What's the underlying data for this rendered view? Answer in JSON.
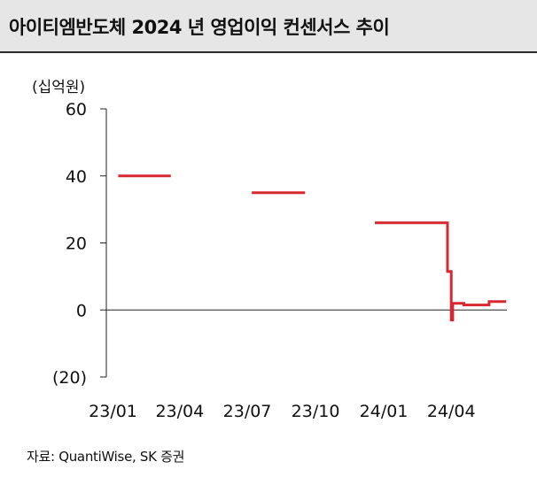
{
  "chart_data": {
    "type": "line",
    "title": "아이티엠반도체 2024 년 영업이익 컨센서스 추이",
    "ylabel": "(십억원)",
    "xlabel": "",
    "source": "자료: QuantiWise, SK 증권",
    "ylim": [
      -20,
      60
    ],
    "xlim": [
      "2022-12-23",
      "2024-06-15"
    ],
    "y_ticks": [
      60,
      40,
      20,
      0,
      -20
    ],
    "y_tick_labels": [
      "60",
      "40",
      "20",
      "0",
      "(20)"
    ],
    "x_ticks": [
      "2023-01-01",
      "2023-04-01",
      "2023-07-01",
      "2023-10-01",
      "2024-01-01",
      "2024-04-01"
    ],
    "x_tick_labels": [
      "23/01",
      "23/04",
      "23/07",
      "23/10",
      "24/01",
      "24/04"
    ],
    "grid": false,
    "legend": "none",
    "series_color": "#d7282f",
    "series": [
      {
        "segments": [
          [
            [
              "2023-01-08",
              40
            ],
            [
              "2023-03-20",
              40
            ]
          ],
          [
            [
              "2023-07-07",
              35
            ],
            [
              "2023-09-17",
              35
            ]
          ],
          [
            [
              "2023-12-20",
              26
            ],
            [
              "2024-03-27",
              26
            ],
            [
              "2024-03-27",
              11.5
            ],
            [
              "2024-04-01",
              11.5
            ],
            [
              "2024-04-01",
              -3
            ],
            [
              "2024-04-03",
              -3
            ],
            [
              "2024-04-03",
              2
            ],
            [
              "2024-04-18",
              2
            ],
            [
              "2024-04-18",
              1.5
            ],
            [
              "2024-05-22",
              1.5
            ],
            [
              "2024-05-22",
              2.5
            ],
            [
              "2024-06-14",
              2.5
            ]
          ]
        ]
      }
    ]
  }
}
